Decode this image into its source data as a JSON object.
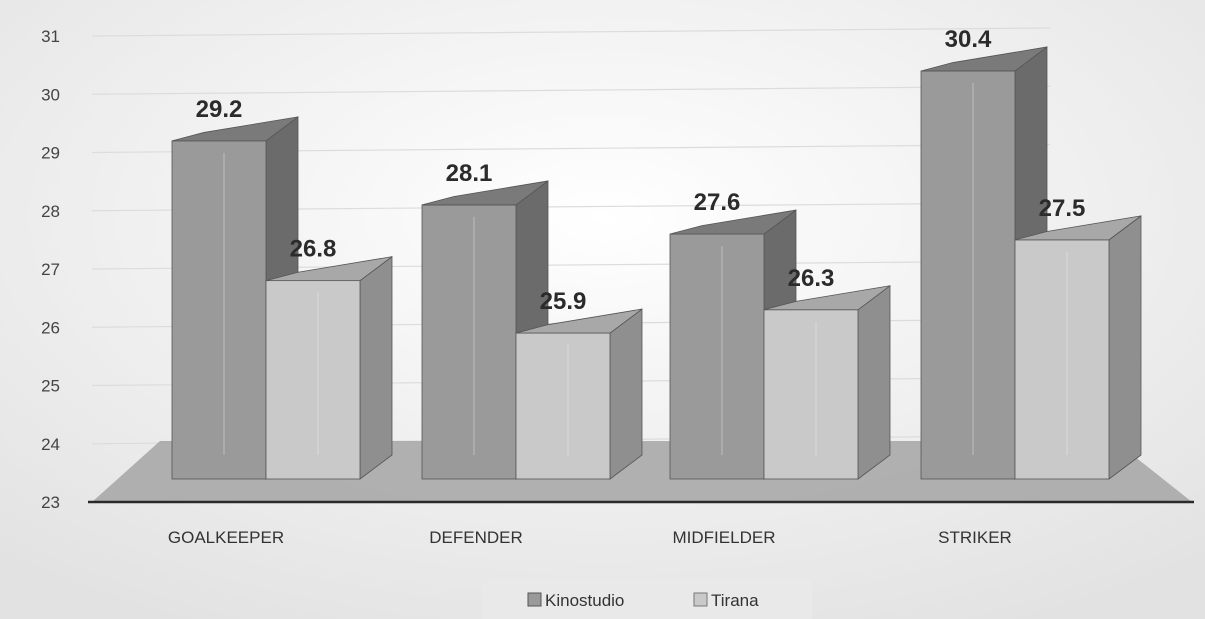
{
  "chart_data": {
    "type": "bar",
    "title": "",
    "xlabel": "",
    "ylabel": "",
    "categories": [
      "GOALKEEPER",
      "DEFENDER",
      "MIDFIELDER",
      "STRIKER"
    ],
    "series": [
      {
        "name": "Kinostudio",
        "values": [
          29.2,
          28.1,
          27.6,
          30.4
        ]
      },
      {
        "name": "Tirana",
        "values": [
          26.8,
          25.9,
          26.3,
          27.5
        ]
      }
    ],
    "ylim": [
      23,
      31
    ],
    "yticks": [
      23,
      24,
      25,
      26,
      27,
      28,
      29,
      30,
      31
    ],
    "grid": true,
    "legend_position": "bottom",
    "style": "3d-clustered-column",
    "colors": {
      "kinostudio_front": "#9a9a9a",
      "kinostudio_side": "#6b6b6b",
      "kinostudio_top": "#7a7a7a",
      "tirana_front": "#c9c9c9",
      "tirana_side": "#8f8f8f",
      "tirana_top": "#a8a8a8",
      "floor": "#a9a9a9",
      "grid": "#dcdcdc",
      "axis": "#2a2a2a"
    }
  }
}
